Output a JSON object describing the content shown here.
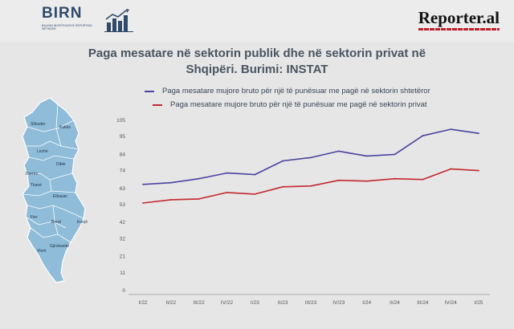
{
  "header": {
    "birn_logo_text": "BIRN",
    "birn_logo_subtitle": "BALKAN INVESTIGATIVE REPORTING NETWORK",
    "reporter_logo_text": "Reporter.al"
  },
  "map": {
    "labels": [
      "Shkodër",
      "Kukës",
      "Lezhë",
      "Dibër",
      "Durrës",
      "Tiranë",
      "Elbasan",
      "Fier",
      "Berat",
      "Korçë",
      "Gjirokastër",
      "Vlorë"
    ]
  },
  "chart_data": {
    "type": "line",
    "title": "Paga mesatare në sektorin publik dhe në sektorin privat në Shqipëri. Burimi: INSTAT",
    "categories": [
      "I/22",
      "II/22",
      "III/22",
      "IV/22",
      "I/23",
      "II/23",
      "III/23",
      "IV/23",
      "I/24",
      "II/24",
      "III/24",
      "IV/24",
      "I/25"
    ],
    "series": [
      {
        "name": "Paga mesatare mujore bruto për një të punësuar me pagë në sektorin shtetëror",
        "color": "#4b43a0",
        "values": [
          65,
          66,
          68.5,
          72,
          71,
          79.5,
          81.5,
          85.5,
          82.5,
          83.5,
          95,
          99,
          96.5
        ]
      },
      {
        "name": "Paga mesatare mujore bruto për një të punësuar me pagë në sektorin privat",
        "color": "#c4282f",
        "values": [
          53.5,
          55.5,
          56,
          60,
          59,
          63.5,
          64,
          67.5,
          67,
          68.5,
          68,
          74.5,
          73.5
        ]
      }
    ],
    "yticks": [
      0,
      11,
      21,
      32,
      42,
      53,
      63,
      74,
      84,
      95,
      105
    ],
    "ylim": [
      0,
      105
    ],
    "grid": false,
    "legend_position": "top"
  }
}
